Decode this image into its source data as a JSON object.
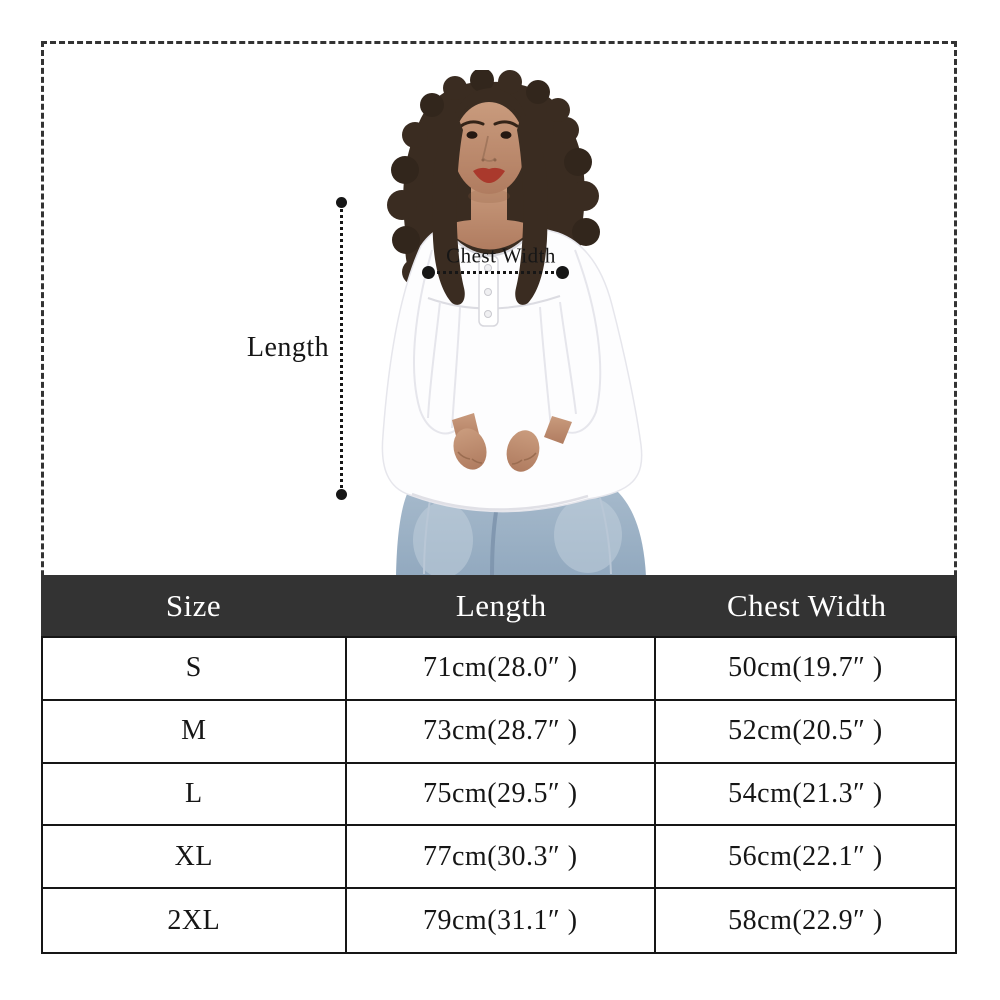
{
  "annotations": {
    "length_label": "Length",
    "chest_width_label": "Chest Width"
  },
  "table": {
    "columns": [
      "Size",
      "Length",
      "Chest Width"
    ],
    "rows": [
      [
        "S",
        "71cm(28.0″ )",
        "50cm(19.7″ )"
      ],
      [
        "M",
        "73cm(28.7″ )",
        "52cm(20.5″ )"
      ],
      [
        "L",
        "75cm(29.5″ )",
        "54cm(21.3″ )"
      ],
      [
        "XL",
        "77cm(30.3″ )",
        "56cm(22.1″ )"
      ],
      [
        "2XL",
        "79cm(31.1″ )",
        "58cm(22.9″ )"
      ]
    ]
  },
  "chart_data": {
    "type": "table",
    "columns": [
      "Size",
      "Length",
      "Chest Width"
    ],
    "rows": [
      {
        "size": "S",
        "length_cm": 71,
        "length_in": 28.0,
        "chest_cm": 50,
        "chest_in": 19.7
      },
      {
        "size": "M",
        "length_cm": 73,
        "length_in": 28.7,
        "chest_cm": 52,
        "chest_in": 20.5
      },
      {
        "size": "L",
        "length_cm": 75,
        "length_in": 29.5,
        "chest_cm": 54,
        "chest_in": 21.3
      },
      {
        "size": "XL",
        "length_cm": 77,
        "length_in": 30.3,
        "chest_cm": 56,
        "chest_in": 22.1
      },
      {
        "size": "2XL",
        "length_cm": 79,
        "length_in": 31.1,
        "chest_cm": 58,
        "chest_in": 22.9
      }
    ]
  },
  "colors": {
    "header_bg": "#333333",
    "header_text": "#ffffff",
    "table_border": "#161616",
    "annotation": "#161616",
    "frame_dash": "#333333",
    "hair": "#3a2c21",
    "hair_dark": "#32261c",
    "skin": "#c08d6e",
    "lips": "#aa392c",
    "shirt": "#fdfdfe",
    "shirt_fold": "#e6e6ec",
    "jeans_light": "#aabdce",
    "jeans_dark": "#92a9bf"
  }
}
